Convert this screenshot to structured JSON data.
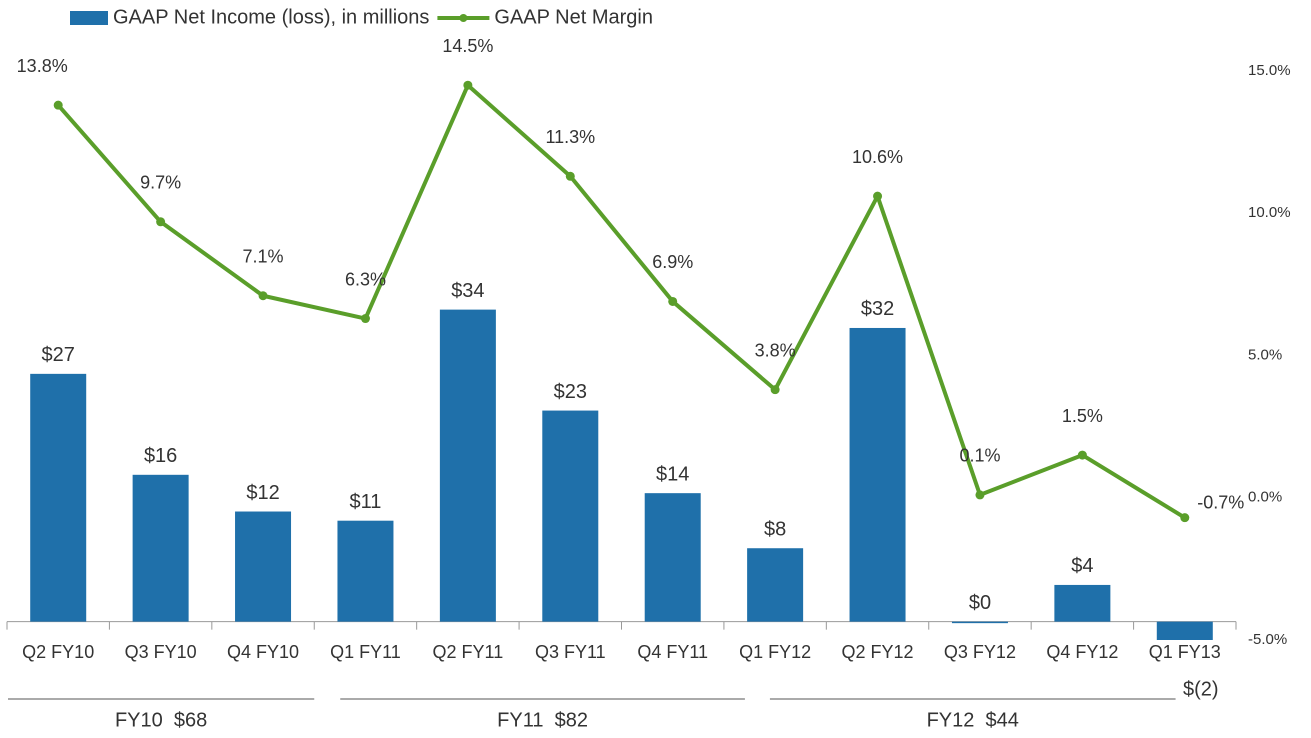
{
  "chart_data": {
    "type": "bar",
    "categories": [
      "Q2 FY10",
      "Q3 FY10",
      "Q4 FY10",
      "Q1 FY11",
      "Q2 FY11",
      "Q3 FY11",
      "Q4 FY11",
      "Q1 FY12",
      "Q2 FY12",
      "Q3 FY12",
      "Q4 FY12",
      "Q1 FY13"
    ],
    "series": [
      {
        "name": "GAAP Net Income (loss), in millions",
        "type": "bar",
        "color": "#1f70aa",
        "values": [
          27,
          16,
          12,
          11,
          34,
          23,
          14,
          8,
          32,
          0,
          4,
          -2
        ],
        "value_labels": [
          "$27",
          "$16",
          "$12",
          "$11",
          "$34",
          "$23",
          "$14",
          "$8",
          "$32",
          "$0",
          "$4",
          "$(2)"
        ]
      },
      {
        "name": "GAAP Net Margin",
        "type": "line",
        "axis": "y2",
        "color": "#5a9e2a",
        "values": [
          13.8,
          9.7,
          7.1,
          6.3,
          14.5,
          11.3,
          6.9,
          3.8,
          10.6,
          0.1,
          1.5,
          -0.7
        ],
        "value_labels": [
          "13.8%",
          "9.7%",
          "7.1%",
          "6.3%",
          "14.5%",
          "11.3%",
          "6.9%",
          "3.8%",
          "10.6%",
          "0.1%",
          "1.5%",
          "-0.7%"
        ]
      }
    ],
    "ylim": [
      -2,
      60
    ],
    "y2lim": [
      -5,
      15
    ],
    "y2ticks": [
      {
        "value": -5,
        "label": "-5.0%"
      },
      {
        "value": 0,
        "label": "0.0%"
      },
      {
        "value": 5,
        "label": "5.0%"
      },
      {
        "value": 10,
        "label": "10.0%"
      },
      {
        "value": 15,
        "label": "15.0%"
      }
    ],
    "groups": [
      "FY10  $68",
      "FY11  $82",
      "FY12  $44"
    ],
    "legend": "top-left"
  }
}
